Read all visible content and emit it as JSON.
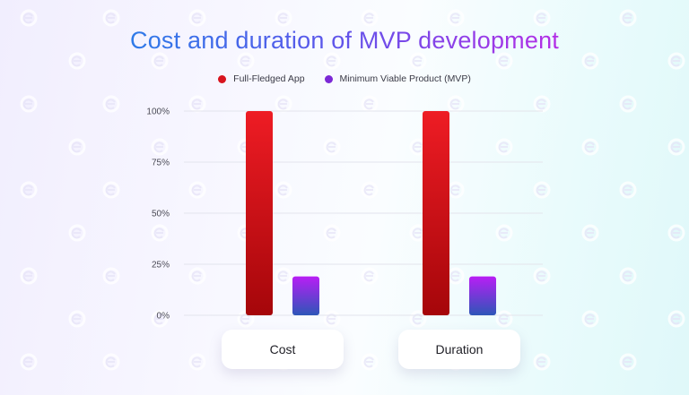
{
  "chart_data": {
    "type": "bar",
    "title": "Cost and duration of MVP development",
    "categories": [
      "Cost",
      "Duration"
    ],
    "series": [
      {
        "name": "Full-Fledged App",
        "values": [
          100,
          100
        ],
        "color": "#e01a24"
      },
      {
        "name": "Minimum Viable Product (MVP)",
        "values": [
          19,
          19
        ],
        "color": "#8a2be2"
      }
    ],
    "yticks": [
      "0%",
      "25%",
      "50%",
      "75%",
      "100%"
    ],
    "ylim": [
      0,
      100
    ],
    "grid": true,
    "legend_position": "top-center"
  }
}
